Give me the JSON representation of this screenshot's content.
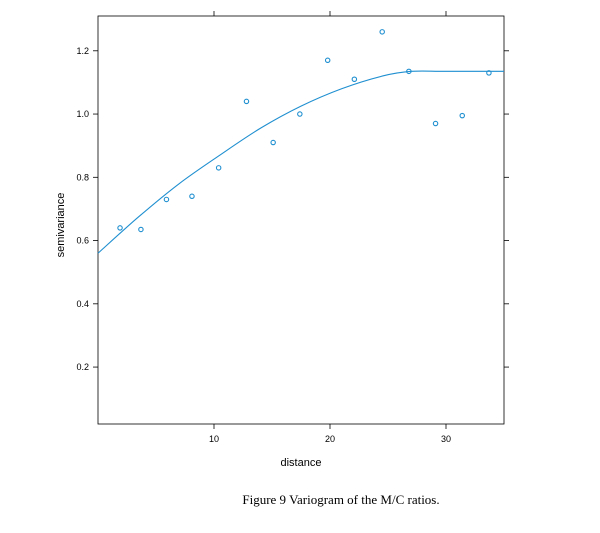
{
  "figure": {
    "caption": "Figure 9 Variogram of the M/C ratios."
  },
  "chart_data": {
    "type": "scatter",
    "xlabel": "distance",
    "ylabel": "semivariance",
    "xlim": [
      0,
      35
    ],
    "ylim": [
      0.02,
      1.31
    ],
    "xticks": [
      10,
      20,
      30
    ],
    "yticks": [
      0.2,
      0.4,
      0.6,
      0.8,
      1.0,
      1.2
    ],
    "ytick_labels": [
      "0.2",
      "0.4",
      "0.6",
      "0.8",
      "1.0",
      "1.2"
    ],
    "grid": false,
    "color": "#1f8fd0",
    "points": {
      "x": [
        1.9,
        3.7,
        5.9,
        8.1,
        10.4,
        12.8,
        15.1,
        17.4,
        19.8,
        22.1,
        24.5,
        26.8,
        29.1,
        31.4,
        33.7
      ],
      "y": [
        0.64,
        0.635,
        0.73,
        0.74,
        0.83,
        1.04,
        0.91,
        1.0,
        1.17,
        1.11,
        1.26,
        1.135,
        0.97,
        0.995,
        1.13
      ]
    },
    "fitted_line": {
      "x": [
        0,
        3.5,
        7,
        10.5,
        14,
        17.5,
        21,
        24.5,
        27,
        30,
        35
      ],
      "y": [
        0.56,
        0.675,
        0.78,
        0.87,
        0.955,
        1.025,
        1.08,
        1.12,
        1.135,
        1.135,
        1.135
      ]
    }
  }
}
